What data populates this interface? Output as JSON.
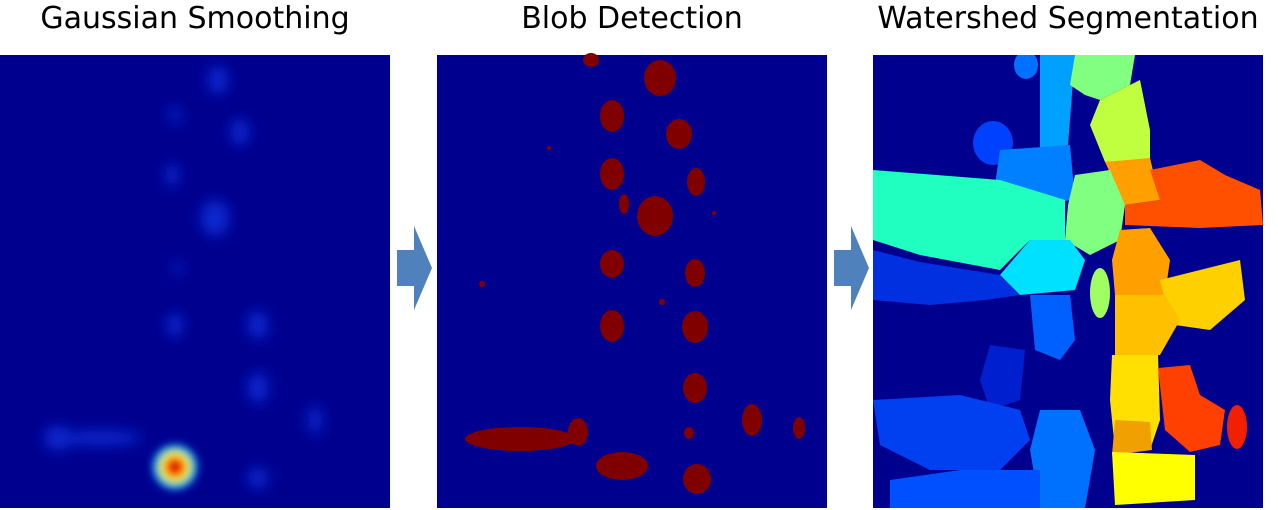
{
  "panels": [
    {
      "title": "Gaussian Smoothing"
    },
    {
      "title": "Blob Detection"
    },
    {
      "title": "Watershed Segmentation"
    }
  ]
}
